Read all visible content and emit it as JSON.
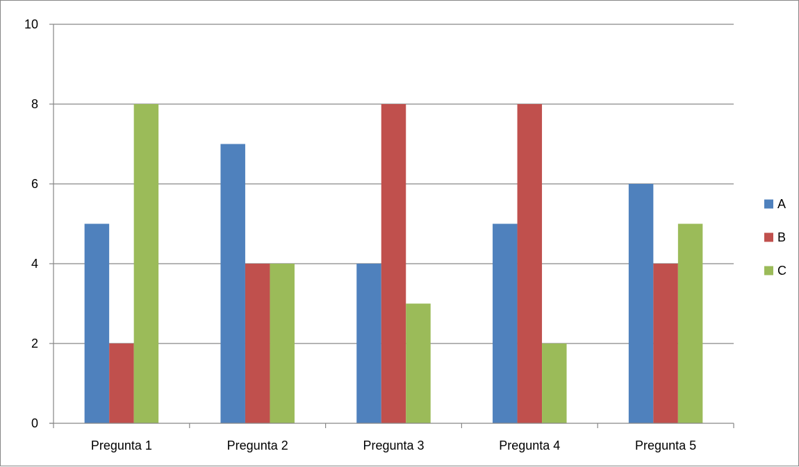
{
  "chart_data": {
    "type": "bar",
    "title": "",
    "xlabel": "",
    "ylabel": "",
    "categories": [
      "Pregunta 1",
      "Pregunta 2",
      "Pregunta 3",
      "Pregunta 4",
      "Pregunta 5"
    ],
    "series": [
      {
        "name": "A",
        "color": "#4F81BD",
        "values": [
          5,
          7,
          4,
          5,
          6
        ]
      },
      {
        "name": "B",
        "color": "#C0504D",
        "values": [
          2,
          4,
          8,
          8,
          4
        ]
      },
      {
        "name": "C",
        "color": "#9BBB59",
        "values": [
          8,
          4,
          3,
          2,
          5
        ]
      }
    ],
    "ylim": [
      0,
      10
    ],
    "yticks": [
      "0",
      "2",
      "4",
      "6",
      "8",
      "10"
    ],
    "grid": true,
    "legend_position": "right"
  }
}
